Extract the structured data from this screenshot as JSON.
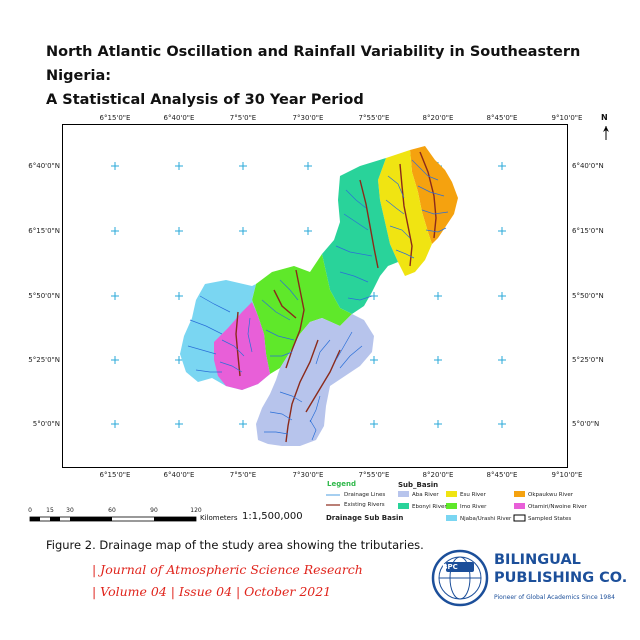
{
  "header": {
    "title_line1": "North Atlantic Oscillation and Rainfall Variability in Southeastern Nigeria:",
    "title_line2": "A Statistical Analysis of 30 Year Period"
  },
  "map": {
    "lon_ticks": [
      "6°15'0\"E",
      "6°40'0\"E",
      "7°5'0\"E",
      "7°30'0\"E",
      "7°55'0\"E",
      "8°20'0\"E",
      "8°45'0\"E",
      "9°10'0\"E"
    ],
    "lat_ticks": [
      "6°40'0\"N",
      "6°15'0\"N",
      "5°50'0\"N",
      "5°25'0\"N",
      "5°0'0\"N"
    ],
    "north_label": "N",
    "grid_color": "#2aa8d8",
    "basin_colors": {
      "aba": "#b7c4ec",
      "ebonyi": "#29d39a",
      "esu": "#f0e412",
      "imo": "#5fe82a",
      "njaba_urashi": "#7ad6f2",
      "okpaukwu": "#f5a20f",
      "otamiri_nwoine": "#e85fd8"
    }
  },
  "legend": {
    "title": "Legend",
    "drainage_lines": "Drainage Lines",
    "existing_rivers": "Existing Rivers",
    "drainage_sub_basin": "Drainage Sub Basin",
    "sub_basin_heading": "Sub_Basin",
    "items": [
      {
        "label": "Aba River",
        "color": "#b7c4ec"
      },
      {
        "label": "Ebonyi River",
        "color": "#29d39a"
      },
      {
        "label": "Esu River",
        "color": "#f0e412"
      },
      {
        "label": "Imo River",
        "color": "#5fe82a"
      },
      {
        "label": "Njaba/Urashi River",
        "color": "#7ad6f2"
      },
      {
        "label": "Okpaukwu River",
        "color": "#f5a20f"
      },
      {
        "label": "Otamiri/Nwoine River",
        "color": "#e85fd8"
      },
      {
        "label": "Sampled States",
        "color": "#ffffff"
      }
    ]
  },
  "scalebar": {
    "labels": [
      "0",
      "15",
      "30",
      "60",
      "90",
      "120"
    ],
    "unit": "Kilometers",
    "ratio": "1:1,500,000"
  },
  "caption": "Figure 2. Drainage map of the study area showing the tributaries.",
  "journal": {
    "line1": "| Journal of Atmospheric Science Research",
    "line2": "| Volume 04 | Issue 04 | October 2021"
  },
  "publisher": {
    "badge": "BPC",
    "name_line1": "BILINGUAL",
    "name_line2": "PUBLISHING CO.",
    "tagline": "Pioneer of Global Academics Since 1984",
    "color": "#1c4f9a"
  }
}
